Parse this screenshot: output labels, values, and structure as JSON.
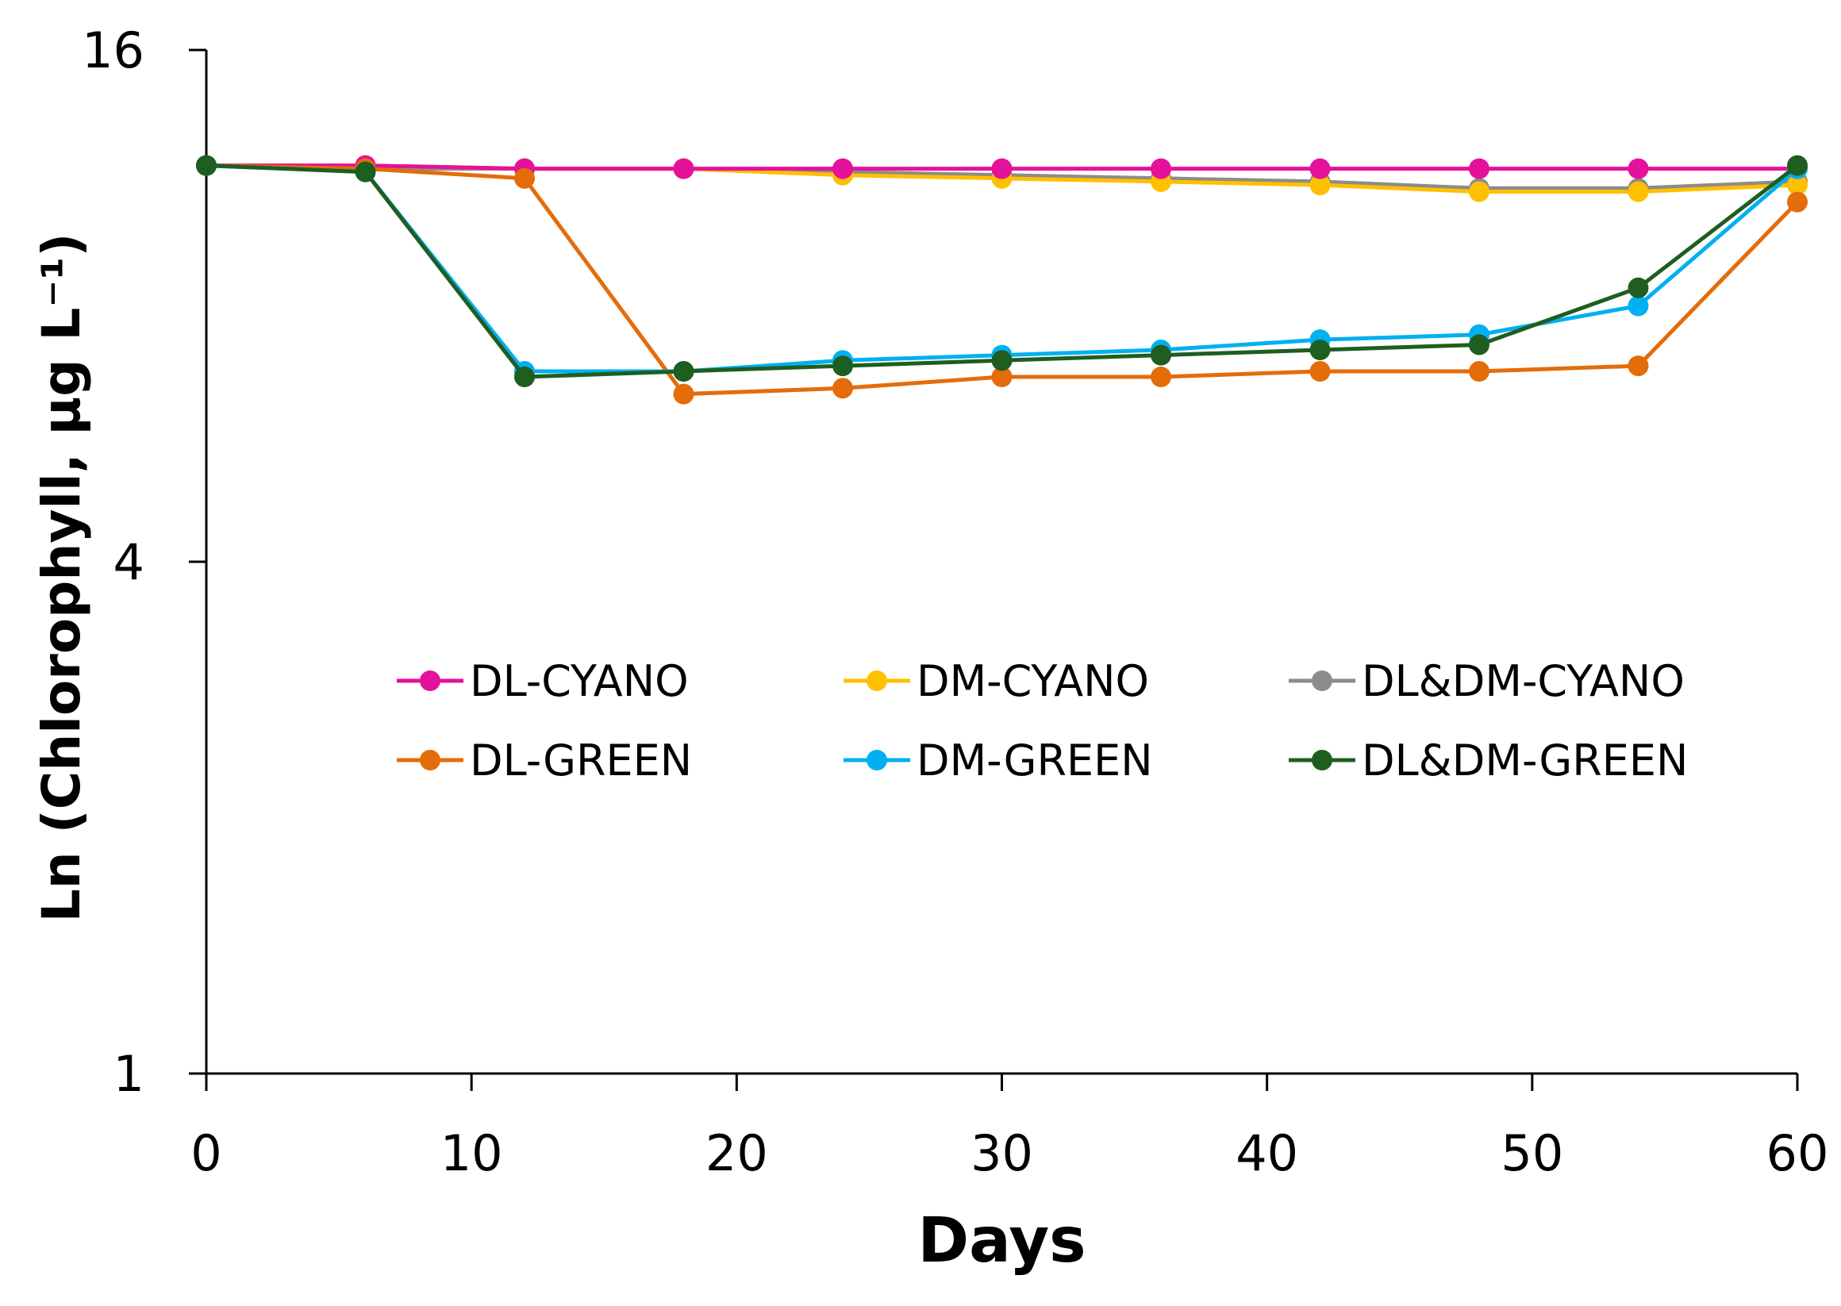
{
  "chart_data": {
    "type": "line",
    "title": "",
    "xlabel": "Days",
    "ylabel": "Ln (Chlorophyll, µg L⁻¹)",
    "xlim": [
      0,
      60
    ],
    "ylim": [
      1,
      16
    ],
    "yscale": "log2",
    "x_ticks": [
      0,
      10,
      20,
      30,
      40,
      50,
      60
    ],
    "x_tick_labels": [
      "0",
      "10",
      "20",
      "30",
      "40",
      "50",
      "60"
    ],
    "y_ticks": [
      1,
      4,
      16
    ],
    "y_tick_labels": [
      "1",
      "4",
      "16"
    ],
    "grid": false,
    "legend_position": "center",
    "x": [
      0,
      6,
      12,
      18,
      24,
      30,
      36,
      42,
      48,
      54,
      60
    ],
    "series": [
      {
        "name": "DL-CYANO",
        "color": "#e5119a",
        "values": [
          11.7,
          11.7,
          11.6,
          11.6,
          11.6,
          11.6,
          11.6,
          11.6,
          11.6,
          11.6,
          11.6
        ]
      },
      {
        "name": "DM-CYANO",
        "color": "#ffc000",
        "values": [
          11.7,
          11.7,
          11.6,
          11.6,
          11.4,
          11.3,
          11.2,
          11.1,
          10.9,
          10.9,
          11.1
        ]
      },
      {
        "name": "DL&DM-CYANO",
        "color": "#8c8c8c",
        "values": [
          11.7,
          11.6,
          11.6,
          11.6,
          11.5,
          11.4,
          11.3,
          11.2,
          11.0,
          11.0,
          11.2
        ]
      },
      {
        "name": "DL-GREEN",
        "color": "#e46c0a",
        "values": [
          11.7,
          11.6,
          11.3,
          6.3,
          6.4,
          6.6,
          6.6,
          6.7,
          6.7,
          6.8,
          10.6
        ]
      },
      {
        "name": "DM-GREEN",
        "color": "#00b0f0",
        "values": [
          11.7,
          11.5,
          6.7,
          6.7,
          6.9,
          7.0,
          7.1,
          7.3,
          7.4,
          8.0,
          11.6
        ]
      },
      {
        "name": "DL&DM-GREEN",
        "color": "#1e5e20",
        "values": [
          11.7,
          11.5,
          6.6,
          6.7,
          6.8,
          6.9,
          7.0,
          7.1,
          7.2,
          8.4,
          11.7
        ]
      }
    ]
  }
}
